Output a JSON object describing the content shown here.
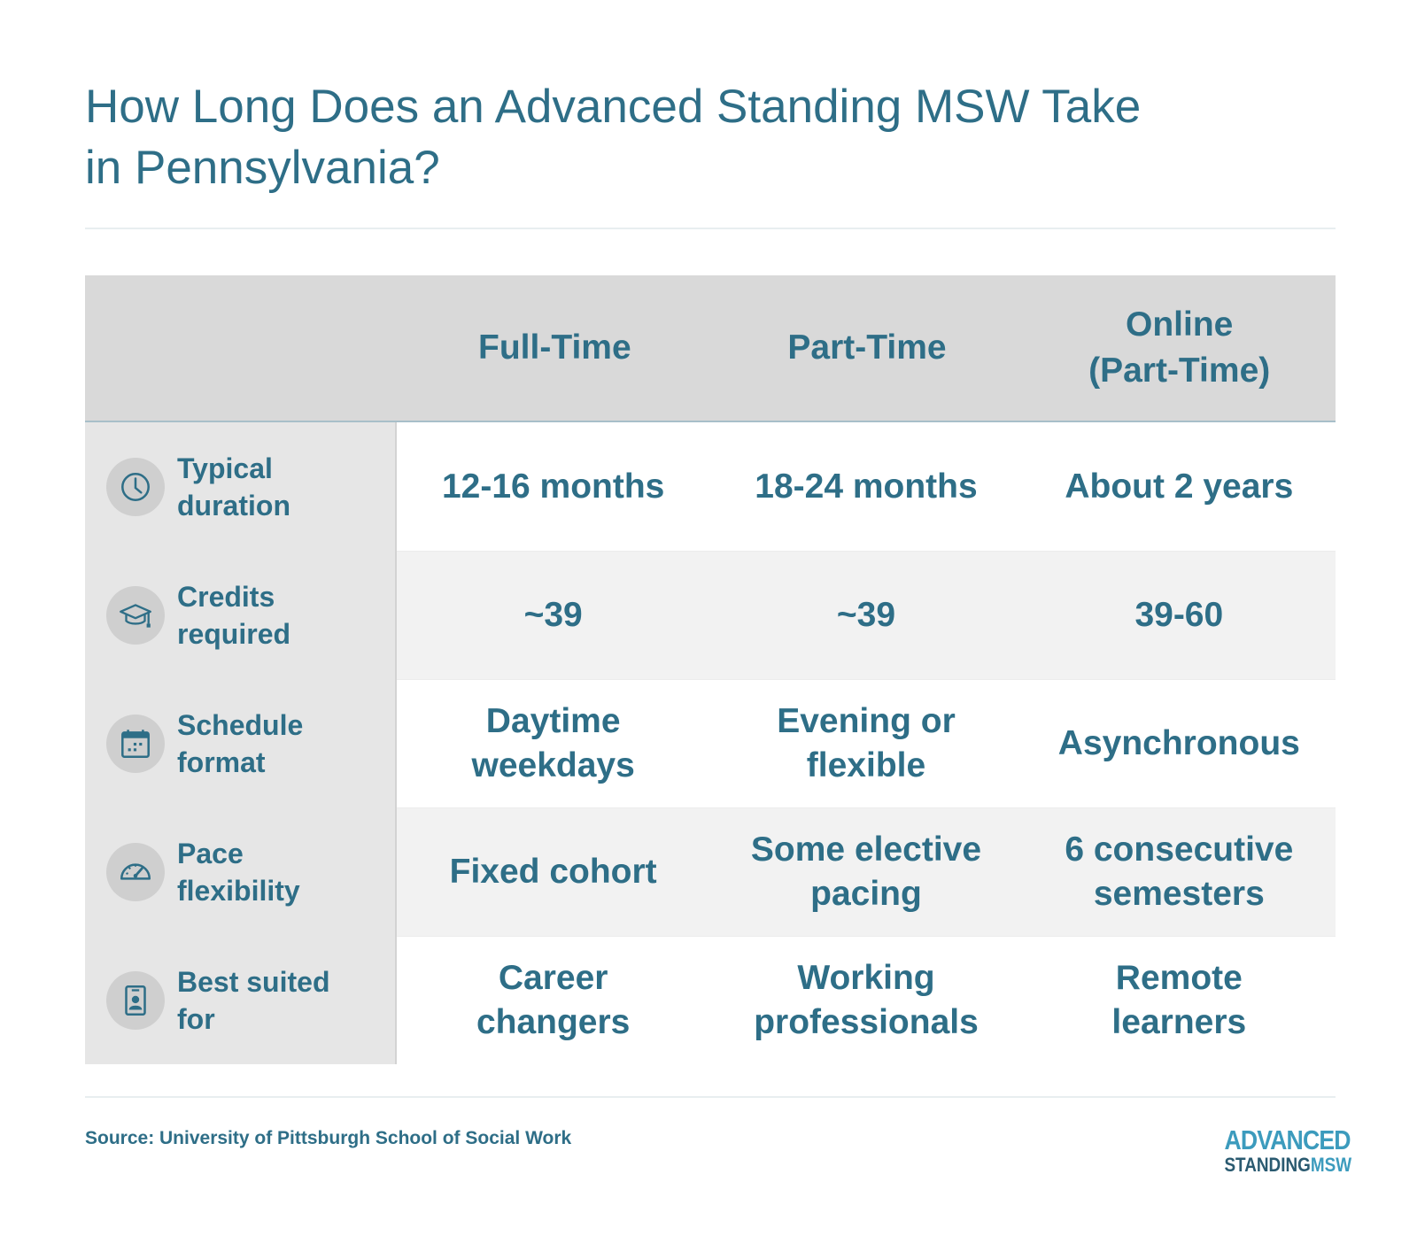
{
  "title": "How Long Does an Advanced Standing MSW Take\nin Pennsylvania?",
  "columns": [
    "Full-Time",
    "Part-Time",
    "Online\n(Part-Time)"
  ],
  "rows": [
    {
      "icon": "clock-icon",
      "label": "Typical\nduration",
      "values": [
        "12-16 months",
        "18-24 months",
        "About 2 years"
      ]
    },
    {
      "icon": "graduation-cap-icon",
      "label": "Credits\nrequired",
      "values": [
        "~39",
        "~39",
        "39-60"
      ]
    },
    {
      "icon": "calendar-icon",
      "label": "Schedule\nformat",
      "values": [
        "Daytime\nweekdays",
        "Evening or\nflexible",
        "Asynchronous"
      ]
    },
    {
      "icon": "speedometer-icon",
      "label": "Pace\nflexibility",
      "values": [
        "Fixed cohort",
        "Some elective\npacing",
        "6 consecutive\nsemesters"
      ]
    },
    {
      "icon": "id-badge-icon",
      "label": "Best suited\nfor",
      "values": [
        "Career\nchangers",
        "Working\nprofessionals",
        "Remote\nlearners"
      ]
    }
  ],
  "source": "Source: University of Pittsburgh School of Social Work",
  "logo": {
    "line1": "ADVANCED",
    "line2a": "STANDING",
    "line2b": "MSW"
  },
  "colors": {
    "text": "#2e6e87",
    "header_bg": "#d9d9d9",
    "label_bg": "#e6e6e6",
    "alt_row": "#f2f2f2",
    "logo_accent": "#3c9bbd"
  },
  "chart_data": {
    "type": "table",
    "title": "How Long Does an Advanced Standing MSW Take in Pennsylvania?",
    "columns": [
      "",
      "Full-Time",
      "Part-Time",
      "Online (Part-Time)"
    ],
    "rows": [
      [
        "Typical duration",
        "12-16 months",
        "18-24 months",
        "About 2 years"
      ],
      [
        "Credits required",
        "~39",
        "~39",
        "39-60"
      ],
      [
        "Schedule format",
        "Daytime weekdays",
        "Evening or flexible",
        "Asynchronous"
      ],
      [
        "Pace flexibility",
        "Fixed cohort",
        "Some elective pacing",
        "6 consecutive semesters"
      ],
      [
        "Best suited for",
        "Career changers",
        "Working professionals",
        "Remote learners"
      ]
    ]
  }
}
